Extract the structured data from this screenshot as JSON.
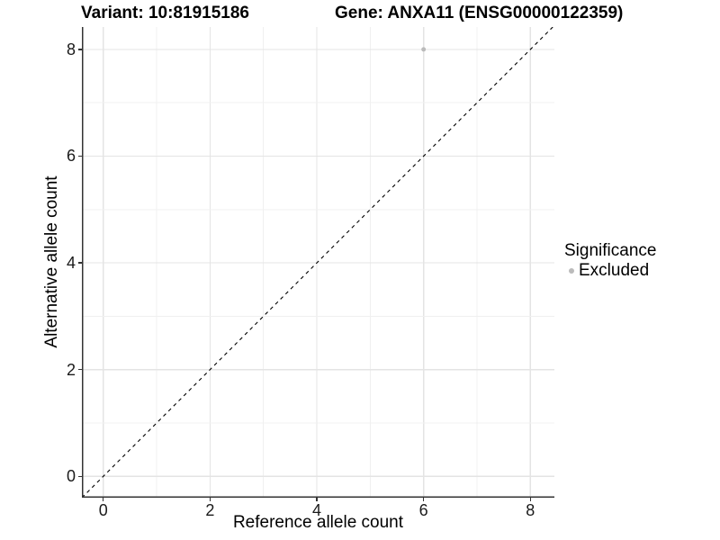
{
  "titles": {
    "left": "Variant: 10:81915186",
    "right": "Gene: ANXA11 (ENSG00000122359)"
  },
  "chart_data": {
    "type": "scatter",
    "xlabel": "Reference allele count",
    "ylabel": "Alternative allele count",
    "x_ticks": [
      0,
      2,
      4,
      6,
      8
    ],
    "y_ticks": [
      0,
      2,
      4,
      6,
      8
    ],
    "xlim": [
      -0.4,
      8.45
    ],
    "ylim": [
      -0.4,
      8.42
    ],
    "grid": "on",
    "minor_grid": "on",
    "points": [
      {
        "x": 6,
        "y": 8,
        "series": "Excluded"
      }
    ],
    "reference_line": {
      "type": "identity",
      "slope": 1,
      "intercept": 0,
      "style": "dashed",
      "color": "#000000"
    },
    "legend": {
      "title": "Significance",
      "position": "right",
      "items": [
        {
          "label": "Excluded",
          "marker": "circle",
          "color": "#bbbbbb"
        }
      ]
    },
    "colors": {
      "point": "#bbbbbb",
      "grid_major": "#e4e4e4",
      "grid_minor": "#f0f0f0",
      "axis_line": "#333333",
      "tick_mark": "#333333",
      "text": "#000000"
    }
  }
}
